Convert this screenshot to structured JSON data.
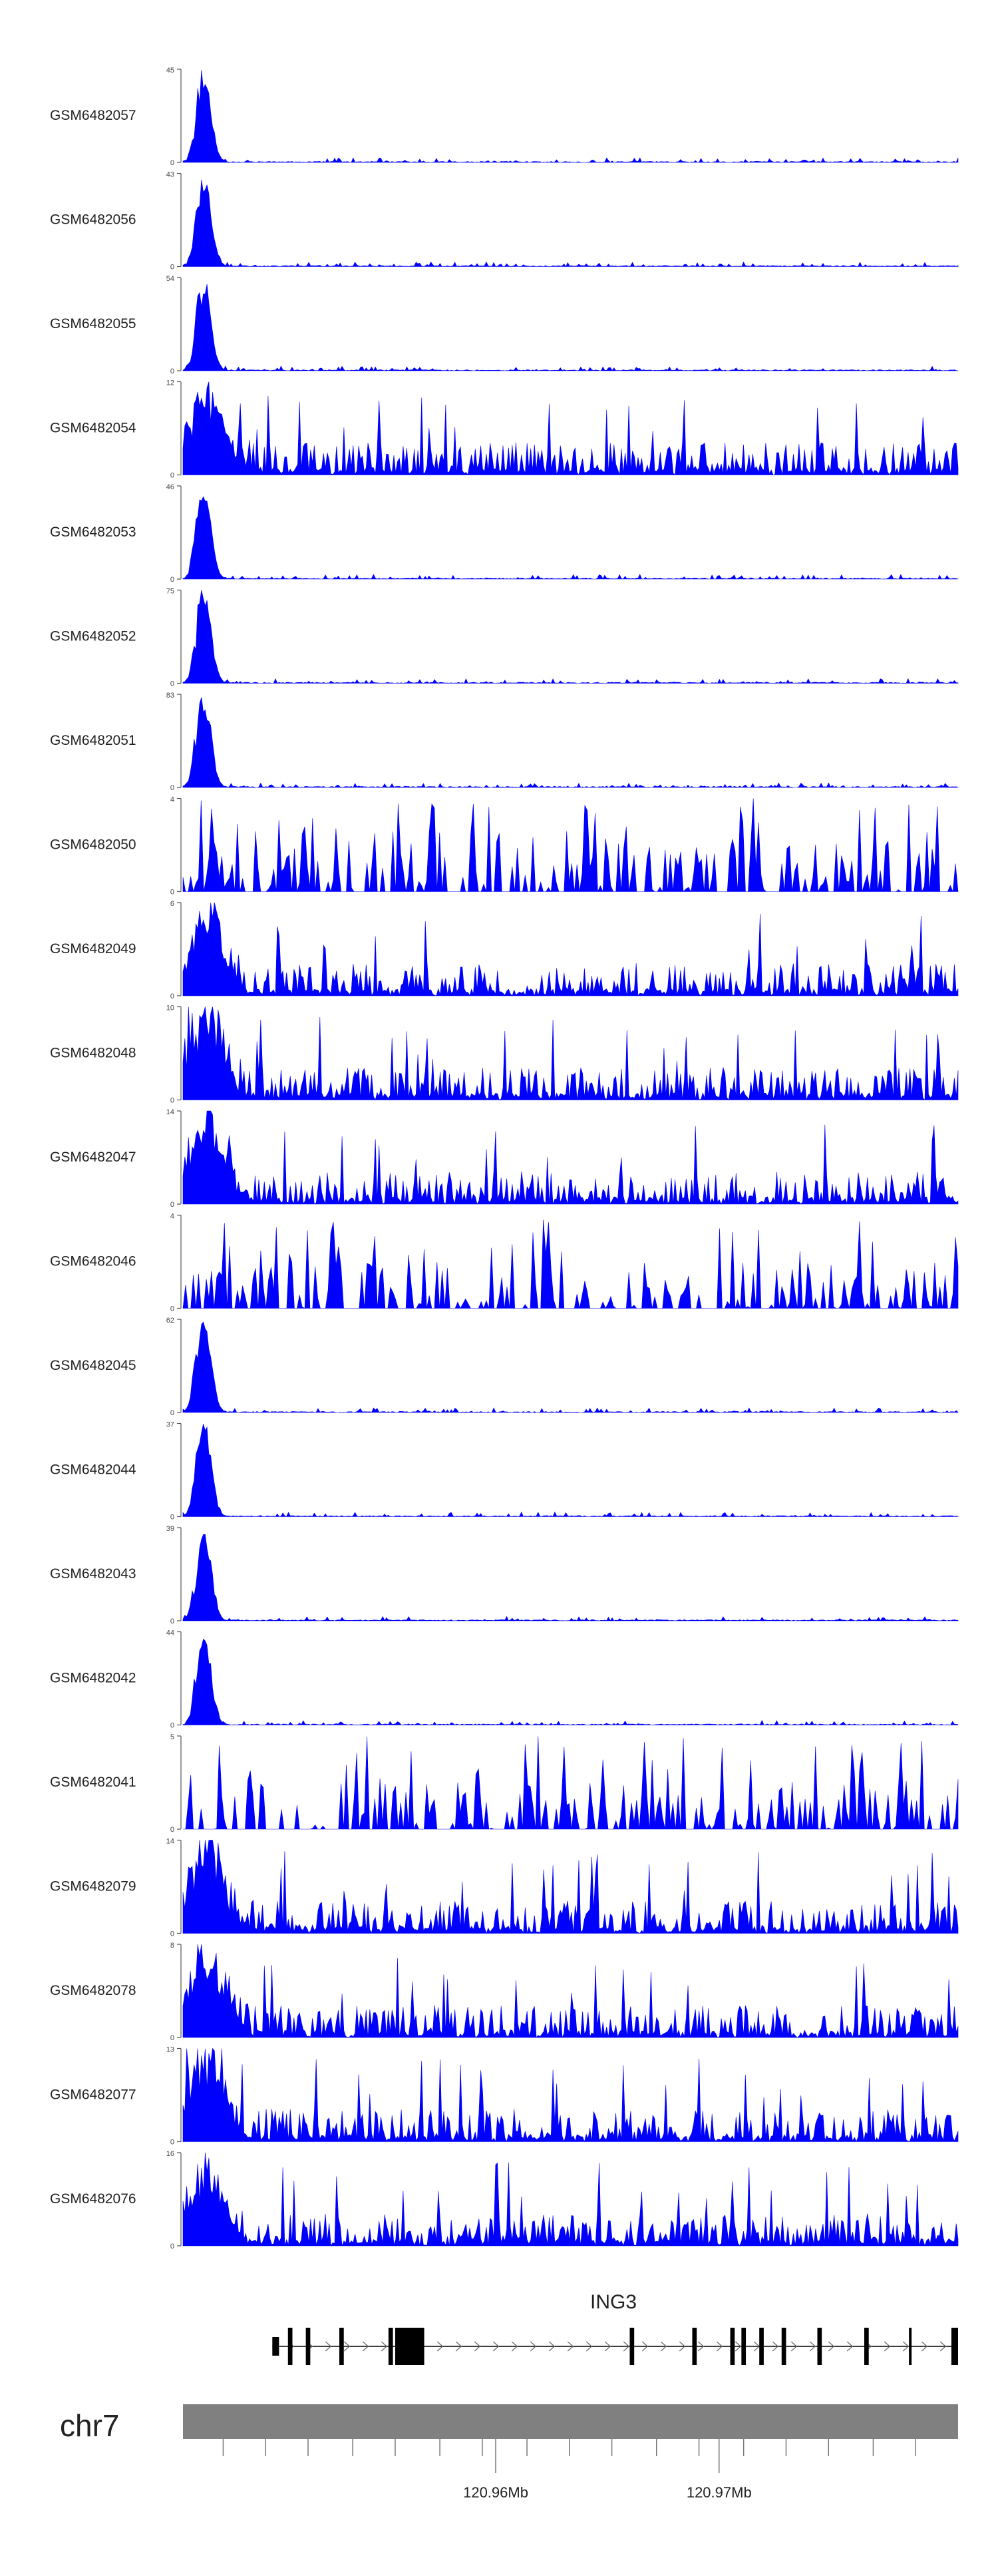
{
  "colors": {
    "signal": "#0000FF",
    "axis": "#555555",
    "gene": "#000000",
    "chromosome_bar": "#808080",
    "text": "#222222"
  },
  "chart_data": {
    "type": "area",
    "title": "",
    "tracks": [
      {
        "name": "GSM6482057",
        "ymax": 45,
        "profile": "peak"
      },
      {
        "name": "GSM6482056",
        "ymax": 43,
        "profile": "peak"
      },
      {
        "name": "GSM6482055",
        "ymax": 54,
        "profile": "peak"
      },
      {
        "name": "GSM6482054",
        "ymax": 12,
        "profile": "noisy"
      },
      {
        "name": "GSM6482053",
        "ymax": 46,
        "profile": "peak"
      },
      {
        "name": "GSM6482052",
        "ymax": 75,
        "profile": "peak"
      },
      {
        "name": "GSM6482051",
        "ymax": 83,
        "profile": "peak"
      },
      {
        "name": "GSM6482050",
        "ymax": 4,
        "profile": "spiky"
      },
      {
        "name": "GSM6482049",
        "ymax": 6,
        "profile": "noisy"
      },
      {
        "name": "GSM6482048",
        "ymax": 10,
        "profile": "noisy"
      },
      {
        "name": "GSM6482047",
        "ymax": 14,
        "profile": "noisy"
      },
      {
        "name": "GSM6482046",
        "ymax": 4,
        "profile": "spiky"
      },
      {
        "name": "GSM6482045",
        "ymax": 62,
        "profile": "peak"
      },
      {
        "name": "GSM6482044",
        "ymax": 37,
        "profile": "peak"
      },
      {
        "name": "GSM6482043",
        "ymax": 39,
        "profile": "peak"
      },
      {
        "name": "GSM6482042",
        "ymax": 44,
        "profile": "peak"
      },
      {
        "name": "GSM6482041",
        "ymax": 5,
        "profile": "spiky"
      },
      {
        "name": "GSM6482079",
        "ymax": 14,
        "profile": "noisy"
      },
      {
        "name": "GSM6482078",
        "ymax": 8,
        "profile": "noisy"
      },
      {
        "name": "GSM6482077",
        "ymax": 13,
        "profile": "noisy"
      },
      {
        "name": "GSM6482076",
        "ymax": 16,
        "profile": "noisy"
      }
    ],
    "ymin_label": "0",
    "gene": {
      "name": "ING3",
      "exons": [
        {
          "start": 120.95,
          "end": 120.9503,
          "thick": false
        },
        {
          "start": 120.9507,
          "end": 120.9509,
          "thick": true
        },
        {
          "start": 120.9515,
          "end": 120.9517,
          "thick": true
        },
        {
          "start": 120.953,
          "end": 120.9532,
          "thick": true
        },
        {
          "start": 120.9552,
          "end": 120.9554,
          "thick": true
        },
        {
          "start": 120.9555,
          "end": 120.9568,
          "thick": true
        },
        {
          "start": 120.966,
          "end": 120.9662,
          "thick": true
        },
        {
          "start": 120.9688,
          "end": 120.969,
          "thick": true
        },
        {
          "start": 120.9705,
          "end": 120.9707,
          "thick": true
        },
        {
          "start": 120.971,
          "end": 120.9712,
          "thick": true
        },
        {
          "start": 120.9718,
          "end": 120.972,
          "thick": true
        },
        {
          "start": 120.9728,
          "end": 120.973,
          "thick": true
        },
        {
          "start": 120.9744,
          "end": 120.9746,
          "thick": true
        },
        {
          "start": 120.9765,
          "end": 120.9767,
          "thick": true
        },
        {
          "start": 120.9785,
          "end": 120.9786,
          "thick": true
        },
        {
          "start": 120.9804,
          "end": 120.9807,
          "thick": true
        }
      ]
    },
    "chromosome": "chr7",
    "x_range": [
      120.946,
      120.9807
    ],
    "x_ticks_minor": [
      120.9478,
      120.9497,
      120.9516,
      120.9536,
      120.9555,
      120.9575,
      120.9594,
      120.9614,
      120.9633,
      120.9652,
      120.9672,
      120.9691,
      120.9711,
      120.973,
      120.9749,
      120.9769,
      120.9788
    ],
    "x_ticks_labeled": [
      {
        "value": 120.96,
        "label": "120.96Mb"
      },
      {
        "value": 120.97,
        "label": "120.97Mb"
      }
    ]
  }
}
